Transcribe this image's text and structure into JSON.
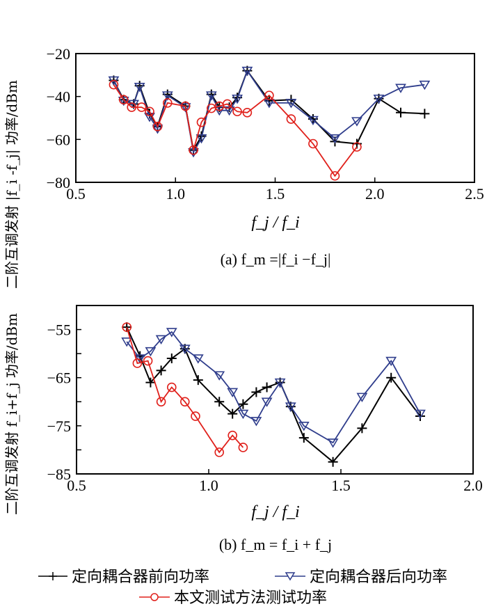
{
  "legend": [
    {
      "name": "定向耦合器前向功率",
      "color": "#000000",
      "marker": "plus"
    },
    {
      "name": "定向耦合器后向功率",
      "color": "#2f3d8c",
      "marker": "triangle-down"
    },
    {
      "name": "本文测试方法测试功率",
      "color": "#e0201b",
      "marker": "circle"
    }
  ],
  "chart_data": [
    {
      "type": "line",
      "caption": "(a) f_m =|f_i −f_j|",
      "xlabel": "f_j / f_i",
      "ylabel": "二阶互调发射 |f_i -f_j| 功率/dBm",
      "xlim": [
        0.5,
        2.5
      ],
      "ylim": [
        -80,
        -20
      ],
      "xticks": [
        "0.5",
        "1.0",
        "1.5",
        "2.0",
        "2.5"
      ],
      "yticks": [
        "−20",
        "−40",
        "−60",
        "−80"
      ],
      "xtick_values": [
        0.5,
        1.0,
        1.5,
        2.0,
        2.5
      ],
      "ytick_values": [
        -20,
        -40,
        -60,
        -80
      ],
      "grid": false,
      "series": [
        {
          "name": "定向耦合器前向功率",
          "x": [
            0.69,
            0.74,
            0.79,
            0.82,
            0.87,
            0.91,
            0.96,
            1.05,
            1.09,
            1.13,
            1.18,
            1.22,
            1.27,
            1.31,
            1.36,
            1.47,
            1.58,
            1.69,
            1.8,
            1.91,
            2.02,
            2.13,
            2.25
          ],
          "y": [
            -32.5,
            -41.5,
            -43.5,
            -35,
            -48,
            -54,
            -39,
            -44.5,
            -65,
            -58.5,
            -39,
            -45,
            -45,
            -40.5,
            -28,
            -42,
            -41.5,
            -50.5,
            -61,
            -62,
            -41,
            -47.5,
            -48
          ]
        },
        {
          "name": "定向耦合器后向功率",
          "x": [
            0.69,
            0.74,
            0.79,
            0.82,
            0.87,
            0.91,
            0.96,
            1.05,
            1.09,
            1.13,
            1.18,
            1.22,
            1.27,
            1.31,
            1.36,
            1.47,
            1.58,
            1.69,
            1.8,
            1.91,
            2.02,
            2.13,
            2.25
          ],
          "y": [
            -32.5,
            -42,
            -43.5,
            -35.5,
            -49.5,
            -55,
            -39.5,
            -45,
            -66,
            -59.5,
            -39.5,
            -46.5,
            -46.5,
            -41,
            -28,
            -43,
            -43,
            -51,
            -59.5,
            -51.5,
            -41,
            -36,
            -34.5
          ]
        },
        {
          "name": "本文测试方法测试功率",
          "x": [
            0.69,
            0.74,
            0.78,
            0.83,
            0.87,
            0.91,
            0.96,
            1.05,
            1.09,
            1.13,
            1.18,
            1.22,
            1.26,
            1.31,
            1.36,
            1.47,
            1.58,
            1.69,
            1.8,
            1.91
          ],
          "y": [
            -34.5,
            -41.5,
            -45,
            -45,
            -47,
            -54,
            -43,
            -44.5,
            -65,
            -52,
            -45.5,
            -44.5,
            -43.5,
            -47,
            -47.5,
            -39.5,
            -50.5,
            -62,
            -77,
            -63.5
          ]
        }
      ]
    },
    {
      "type": "line",
      "caption": "(b) f_m = f_i + f_j",
      "xlabel": "f_j / f_i",
      "ylabel": "二阶互调发射 f_i+f_j 功率/dBm",
      "xlim": [
        0.5,
        2.0
      ],
      "ylim": [
        -85,
        -50
      ],
      "xticks": [
        "0.5",
        "1.0",
        "1.5",
        "2.0"
      ],
      "yticks": [
        "−55",
        "−65",
        "−75",
        "−85"
      ],
      "xtick_values": [
        0.5,
        1.0,
        1.5,
        2.0
      ],
      "ytick_values": [
        -55,
        -65,
        -75,
        -85
      ],
      "minor_yticks": [
        -60,
        -70,
        -80
      ],
      "grid": false,
      "series": [
        {
          "name": "定向耦合器前向功率",
          "x": [
            0.69,
            0.74,
            0.78,
            0.82,
            0.86,
            0.91,
            0.96,
            1.04,
            1.09,
            1.13,
            1.18,
            1.22,
            1.27,
            1.31,
            1.36,
            1.47,
            1.58,
            1.69,
            1.8
          ],
          "y": [
            -54.5,
            -60.5,
            -66,
            -63.5,
            -61,
            -59,
            -65.5,
            -70,
            -72.5,
            -70.5,
            -68,
            -67,
            -66,
            -71,
            -77.5,
            -82.5,
            -75.5,
            -65,
            -73
          ]
        },
        {
          "name": "定向耦合器后向功率",
          "x": [
            0.69,
            0.74,
            0.78,
            0.82,
            0.86,
            0.91,
            0.96,
            1.04,
            1.09,
            1.13,
            1.18,
            1.22,
            1.27,
            1.31,
            1.36,
            1.47,
            1.58,
            1.69,
            1.8
          ],
          "y": [
            -57.5,
            -61,
            -59.5,
            -57,
            -55.5,
            -59,
            -61,
            -64.5,
            -68,
            -72.5,
            -74,
            -70,
            -66,
            -71,
            -75,
            -78.5,
            -69,
            -61.5,
            -72.5
          ]
        },
        {
          "name": "本文测试方法测试功率",
          "x": [
            0.69,
            0.73,
            0.77,
            0.82,
            0.86,
            0.91,
            0.95,
            1.04,
            1.09,
            1.13
          ],
          "y": [
            -54.5,
            -62,
            -61.5,
            -70,
            -67,
            -70,
            -73,
            -80.5,
            -77,
            -79.5
          ]
        }
      ]
    }
  ]
}
